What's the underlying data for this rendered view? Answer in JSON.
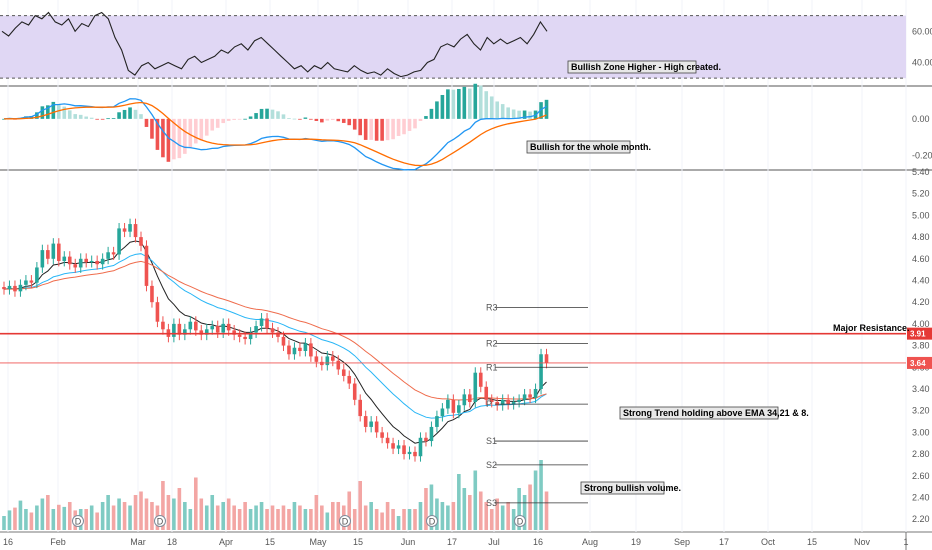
{
  "chart_data": {
    "type": "candlestick",
    "xaxis": {
      "labels": [
        "16",
        "Feb",
        "Mar",
        "18",
        "Apr",
        "15",
        "May",
        "15",
        "Jun",
        "17",
        "Jul",
        "16",
        "Aug",
        "19",
        "Sep",
        "17",
        "Oct",
        "15",
        "Nov",
        "1"
      ]
    },
    "panels": {
      "rsi": {
        "ticks": [
          "60.00",
          "40.00"
        ],
        "ylim": [
          25,
          80
        ],
        "zone": [
          30,
          70
        ],
        "annotation": "Bullish Zone Higher - High created."
      },
      "macd": {
        "ticks": [
          "0.00",
          "-0.20"
        ],
        "ylim": [
          -0.28,
          0.18
        ],
        "annotation": "Bullish for the whole month."
      },
      "price": {
        "ticks": [
          "5.40",
          "5.20",
          "5.00",
          "4.80",
          "4.60",
          "4.40",
          "4.20",
          "4.00",
          "3.80",
          "3.60",
          "3.40",
          "3.20",
          "3.00",
          "2.80",
          "2.60",
          "2.40",
          "2.20"
        ],
        "ylim": [
          2.1,
          5.4
        ],
        "resistance": {
          "value": 3.91,
          "tag": "3.91",
          "label": "Major Resistance.",
          "color": "#e53935"
        },
        "last_price": {
          "value": 3.64,
          "tag": "3.64",
          "color": "#ef5350"
        },
        "pivots": [
          {
            "name": "R3",
            "value": 4.15
          },
          {
            "name": "R2",
            "value": 3.82
          },
          {
            "name": "R1",
            "value": 3.6
          },
          {
            "name": "P",
            "value": 3.26
          },
          {
            "name": "S1",
            "value": 2.92
          },
          {
            "name": "S2",
            "value": 2.7
          },
          {
            "name": "S3",
            "value": 2.35
          }
        ],
        "annotations": [
          "Strong Trend holding above EMA 34,21 & 8.",
          "Strong bullish volume."
        ],
        "dividend_marker": "D"
      }
    },
    "series": {
      "close": [
        4.32,
        4.35,
        4.3,
        4.36,
        4.4,
        4.38,
        4.52,
        4.68,
        4.6,
        4.74,
        4.58,
        4.62,
        4.55,
        4.52,
        4.6,
        4.57,
        4.58,
        4.55,
        4.6,
        4.66,
        4.64,
        4.88,
        4.85,
        4.92,
        4.8,
        4.72,
        4.35,
        4.2,
        4.02,
        3.95,
        3.88,
        4.0,
        3.9,
        3.95,
        4.02,
        3.94,
        3.9,
        3.95,
        3.98,
        3.92,
        4.0,
        3.94,
        3.9,
        3.88,
        3.86,
        3.92,
        3.98,
        4.05,
        3.96,
        3.92,
        3.88,
        3.8,
        3.72,
        3.78,
        3.75,
        3.82,
        3.7,
        3.65,
        3.62,
        3.7,
        3.66,
        3.58,
        3.52,
        3.45,
        3.3,
        3.15,
        3.05,
        3.1,
        3.0,
        2.95,
        2.9,
        2.85,
        2.88,
        2.8,
        2.82,
        2.78,
        2.95,
        2.92,
        3.05,
        3.15,
        3.22,
        3.3,
        3.18,
        3.25,
        3.35,
        3.28,
        3.55,
        3.42,
        3.3,
        3.28,
        3.25,
        3.3,
        3.26,
        3.28,
        3.3,
        3.35,
        3.32,
        3.4,
        3.72,
        3.64
      ],
      "volume": [
        0.2,
        0.28,
        0.32,
        0.42,
        0.3,
        0.25,
        0.35,
        0.45,
        0.5,
        0.3,
        0.36,
        0.33,
        0.4,
        0.28,
        0.3,
        0.3,
        0.35,
        0.25,
        0.4,
        0.5,
        0.35,
        0.45,
        0.4,
        0.35,
        0.5,
        0.55,
        0.45,
        0.4,
        0.35,
        0.7,
        0.5,
        0.45,
        0.6,
        0.4,
        0.3,
        0.75,
        0.45,
        0.35,
        0.5,
        0.35,
        0.4,
        0.45,
        0.35,
        0.3,
        0.4,
        0.3,
        0.35,
        0.4,
        0.3,
        0.35,
        0.3,
        0.35,
        0.3,
        0.4,
        0.35,
        0.3,
        0.3,
        0.5,
        0.35,
        0.25,
        0.4,
        0.4,
        0.35,
        0.55,
        0.3,
        0.7,
        0.35,
        0.4,
        0.3,
        0.25,
        0.4,
        0.3,
        0.2,
        0.3,
        0.3,
        0.3,
        0.4,
        0.6,
        0.65,
        0.45,
        0.4,
        0.35,
        0.4,
        0.8,
        0.6,
        0.5,
        0.85,
        0.55,
        0.4,
        0.3,
        0.45,
        0.35,
        0.4,
        0.3,
        0.6,
        0.5,
        0.65,
        0.85,
        1.0,
        0.55
      ],
      "rsi": [
        60,
        57,
        62,
        66,
        64,
        70,
        68,
        72,
        66,
        64,
        68,
        60,
        65,
        63,
        70,
        72,
        68,
        56,
        48,
        35,
        32,
        38,
        40,
        36,
        38,
        40,
        38,
        36,
        42,
        44,
        40,
        42,
        44,
        48,
        46,
        50,
        52,
        48,
        54,
        56,
        52,
        48,
        44,
        40,
        36,
        38,
        34,
        38,
        36,
        40,
        36,
        35,
        34,
        38,
        35,
        33,
        34,
        32,
        36,
        33,
        31,
        32,
        34,
        35,
        40,
        42,
        50,
        52,
        50,
        55,
        58,
        52,
        48,
        56,
        52,
        55,
        52,
        54,
        56,
        52,
        58,
        66,
        60
      ]
    }
  }
}
